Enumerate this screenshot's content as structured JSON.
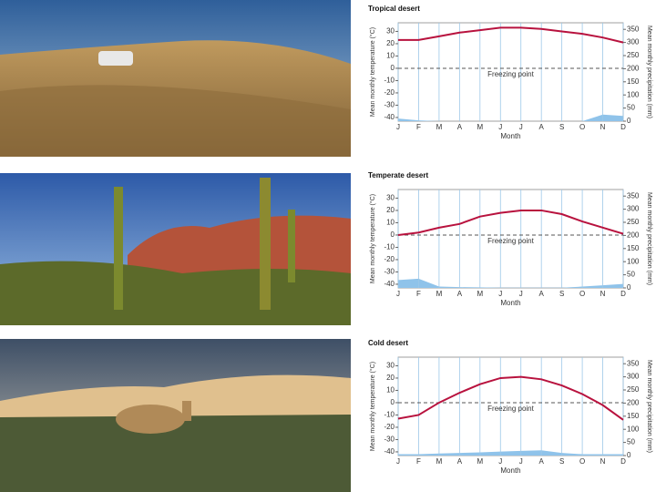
{
  "chart_data": [
    {
      "type": "line",
      "title": "Tropical desert",
      "categories": [
        "J",
        "F",
        "M",
        "A",
        "M",
        "J",
        "J",
        "A",
        "S",
        "O",
        "N",
        "D"
      ],
      "x_label": "Month",
      "y_label": "Mean monthly temperature (°C)",
      "y2_label": "Mean monthly precipitation (mm)",
      "ylim": [
        -43,
        37
      ],
      "yticks": [
        -40,
        -30,
        -20,
        -10,
        0,
        10,
        20,
        30
      ],
      "y2lim": [
        0,
        375
      ],
      "y2ticks": [
        0,
        50,
        100,
        150,
        200,
        250,
        300,
        350
      ],
      "reference_line": {
        "value": 0,
        "label": "Freezing point"
      },
      "grid": true,
      "series": [
        {
          "color": "#b8123e",
          "values": [
            23,
            23,
            26,
            29,
            31,
            33,
            33,
            32,
            30,
            28,
            25,
            21
          ]
        },
        {
          "color": "#8fc3ea",
          "axis": "y2",
          "fill": true,
          "values": [
            10,
            3,
            0,
            0,
            0,
            0,
            0,
            0,
            0,
            0,
            25,
            20
          ]
        }
      ]
    },
    {
      "type": "line",
      "title": "Temperate desert",
      "categories": [
        "J",
        "F",
        "M",
        "A",
        "M",
        "J",
        "J",
        "A",
        "S",
        "O",
        "N",
        "D"
      ],
      "x_label": "Month",
      "y_label": "Mean monthly temperature (°C)",
      "y2_label": "Mean monthly precipitation (mm)",
      "ylim": [
        -43,
        37
      ],
      "yticks": [
        -40,
        -30,
        -20,
        -10,
        0,
        10,
        20,
        30
      ],
      "y2lim": [
        0,
        375
      ],
      "y2ticks": [
        0,
        50,
        100,
        150,
        200,
        250,
        300,
        350
      ],
      "reference_line": {
        "value": 0,
        "label": "Freezing point"
      },
      "grid": true,
      "series": [
        {
          "color": "#b8123e",
          "values": [
            0,
            2,
            6,
            9,
            15,
            18,
            20,
            20,
            17,
            11,
            6,
            1
          ]
        },
        {
          "color": "#8fc3ea",
          "axis": "y2",
          "fill": true,
          "values": [
            30,
            35,
            5,
            3,
            2,
            1,
            1,
            1,
            1,
            5,
            10,
            15
          ]
        }
      ]
    },
    {
      "type": "line",
      "title": "Cold desert",
      "categories": [
        "J",
        "F",
        "M",
        "A",
        "M",
        "J",
        "J",
        "A",
        "S",
        "O",
        "N",
        "D"
      ],
      "x_label": "Month",
      "y_label": "Mean monthly temperature (°C)",
      "y2_label": "Mean monthly precipitation (mm)",
      "ylim": [
        -43,
        37
      ],
      "yticks": [
        -40,
        -30,
        -20,
        -10,
        0,
        10,
        20,
        30
      ],
      "y2lim": [
        0,
        375
      ],
      "y2ticks": [
        0,
        50,
        100,
        150,
        200,
        250,
        300,
        350
      ],
      "reference_line": {
        "value": 0,
        "label": "Freezing point"
      },
      "grid": true,
      "series": [
        {
          "color": "#b8123e",
          "values": [
            -13,
            -10,
            0,
            8,
            15,
            20,
            21,
            19,
            14,
            7,
            -2,
            -14
          ]
        },
        {
          "color": "#8fc3ea",
          "axis": "y2",
          "fill": true,
          "values": [
            5,
            5,
            8,
            10,
            12,
            15,
            18,
            20,
            10,
            5,
            5,
            5
          ]
        }
      ]
    }
  ]
}
